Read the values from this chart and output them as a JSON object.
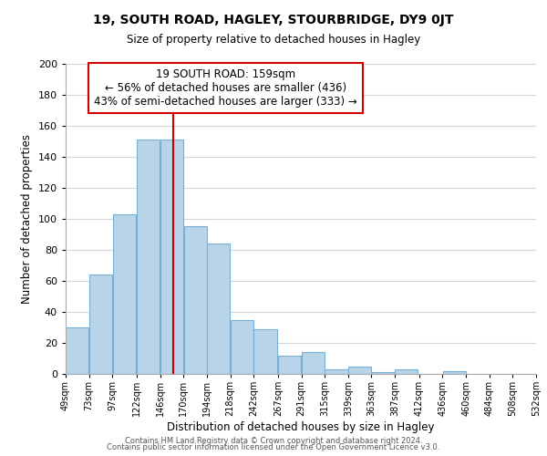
{
  "title1": "19, SOUTH ROAD, HAGLEY, STOURBRIDGE, DY9 0JT",
  "title2": "Size of property relative to detached houses in Hagley",
  "xlabel": "Distribution of detached houses by size in Hagley",
  "ylabel": "Number of detached properties",
  "bar_color": "#b8d4e8",
  "bar_edge_color": "#7aafd4",
  "bar_left_edges": [
    49,
    73,
    97,
    122,
    146,
    170,
    194,
    218,
    242,
    267,
    291,
    315,
    339,
    363,
    387,
    412,
    436,
    460,
    484,
    508
  ],
  "bar_heights": [
    30,
    64,
    103,
    151,
    151,
    95,
    84,
    35,
    29,
    12,
    14,
    3,
    5,
    1,
    3,
    0,
    2,
    0,
    0,
    0
  ],
  "bin_width": 24,
  "tick_labels": [
    "49sqm",
    "73sqm",
    "97sqm",
    "122sqm",
    "146sqm",
    "170sqm",
    "194sqm",
    "218sqm",
    "242sqm",
    "267sqm",
    "291sqm",
    "315sqm",
    "339sqm",
    "363sqm",
    "387sqm",
    "412sqm",
    "436sqm",
    "460sqm",
    "484sqm",
    "508sqm",
    "532sqm"
  ],
  "vline_x": 159,
  "vline_color": "#cc0000",
  "annotation_title": "19 SOUTH ROAD: 159sqm",
  "annotation_line1": "← 56% of detached houses are smaller (436)",
  "annotation_line2": "43% of semi-detached houses are larger (333) →",
  "annotation_fontsize": 8.5,
  "ylim": [
    0,
    200
  ],
  "yticks": [
    0,
    20,
    40,
    60,
    80,
    100,
    120,
    140,
    160,
    180,
    200
  ],
  "grid_color": "#d0d8e0",
  "background_color": "#ffffff",
  "footer1": "Contains HM Land Registry data © Crown copyright and database right 2024.",
  "footer2": "Contains public sector information licensed under the Open Government Licence v3.0."
}
